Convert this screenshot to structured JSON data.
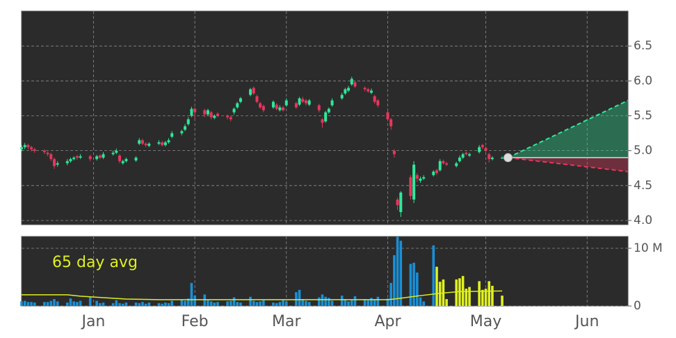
{
  "chart_data": {
    "type": "candlestick",
    "x": [
      -22,
      -21,
      -20,
      -19,
      -18,
      -15,
      -14,
      -13,
      -12,
      -11,
      -8,
      -7,
      -6,
      -5,
      -4,
      -1,
      1,
      2,
      3,
      6,
      7,
      8,
      9,
      10,
      13,
      14,
      15,
      16,
      17,
      20,
      21,
      22,
      23,
      24,
      27,
      28,
      29,
      30,
      31,
      34,
      35,
      36,
      37,
      38,
      41,
      42,
      43,
      44,
      45,
      48,
      49,
      50,
      51,
      52,
      55,
      56,
      57,
      58,
      59,
      62,
      63,
      64,
      65,
      66,
      69,
      70,
      71,
      72,
      73,
      76,
      77,
      78,
      79,
      80,
      83,
      84,
      85,
      86,
      87,
      90,
      91,
      92,
      93,
      94,
      97,
      98,
      99,
      100,
      101,
      104,
      105,
      106,
      107,
      108,
      111,
      112,
      113,
      114,
      115,
      118,
      119,
      120,
      121,
      122,
      125
    ],
    "open": [
      5.02,
      5.05,
      5.08,
      5.05,
      5.02,
      5.0,
      4.97,
      4.95,
      4.88,
      4.8,
      4.82,
      4.85,
      4.88,
      4.92,
      4.9,
      4.92,
      4.88,
      4.93,
      4.9,
      4.95,
      4.97,
      4.93,
      4.82,
      4.85,
      4.86,
      5.1,
      5.15,
      5.1,
      5.07,
      5.1,
      5.12,
      5.08,
      5.12,
      5.2,
      5.25,
      5.3,
      5.38,
      5.5,
      5.6,
      5.58,
      5.52,
      5.55,
      5.47,
      5.53,
      5.5,
      5.48,
      5.55,
      5.62,
      5.7,
      5.8,
      5.9,
      5.78,
      5.68,
      5.64,
      5.62,
      5.66,
      5.58,
      5.62,
      5.65,
      5.68,
      5.66,
      5.74,
      5.72,
      5.66,
      5.65,
      5.45,
      5.42,
      5.55,
      5.65,
      5.75,
      5.82,
      5.86,
      5.95,
      5.98,
      5.9,
      5.88,
      5.83,
      5.78,
      5.72,
      5.55,
      5.45,
      5.0,
      4.3,
      4.12,
      4.62,
      4.3,
      4.65,
      4.57,
      4.6,
      4.65,
      4.72,
      4.72,
      4.85,
      4.82,
      4.78,
      4.85,
      4.9,
      4.97,
      4.93,
      4.98,
      5.08,
      5.04,
      4.95,
      4.88,
      4.9
    ],
    "high": [
      5.08,
      5.11,
      5.1,
      5.07,
      5.04,
      5.02,
      4.99,
      4.97,
      4.9,
      4.85,
      4.88,
      4.9,
      4.92,
      4.94,
      4.95,
      4.94,
      4.94,
      4.95,
      4.98,
      5.0,
      5.03,
      4.95,
      4.87,
      4.9,
      4.92,
      5.18,
      5.17,
      5.12,
      5.12,
      5.15,
      5.14,
      5.14,
      5.18,
      5.28,
      5.3,
      5.38,
      5.48,
      5.63,
      5.62,
      5.6,
      5.6,
      5.57,
      5.52,
      5.55,
      5.52,
      5.5,
      5.62,
      5.7,
      5.77,
      5.9,
      5.92,
      5.8,
      5.7,
      5.66,
      5.72,
      5.68,
      5.65,
      5.64,
      5.75,
      5.7,
      5.77,
      5.77,
      5.74,
      5.74,
      5.67,
      5.47,
      5.57,
      5.62,
      5.75,
      5.83,
      5.9,
      5.93,
      6.06,
      6.0,
      5.92,
      5.9,
      5.89,
      5.8,
      5.74,
      5.57,
      5.47,
      5.02,
      4.33,
      4.42,
      4.65,
      4.85,
      4.68,
      4.63,
      4.65,
      4.72,
      4.74,
      4.88,
      4.87,
      4.84,
      4.84,
      4.93,
      4.97,
      4.99,
      4.97,
      5.08,
      5.1,
      5.06,
      4.97,
      4.92,
      4.92
    ],
    "low": [
      4.99,
      5.02,
      5.02,
      4.99,
      4.97,
      4.95,
      4.92,
      4.85,
      4.74,
      4.77,
      4.79,
      4.83,
      4.86,
      4.87,
      4.88,
      4.85,
      4.86,
      4.88,
      4.88,
      4.93,
      4.95,
      4.82,
      4.8,
      4.83,
      4.84,
      5.08,
      5.08,
      5.05,
      5.05,
      5.08,
      5.06,
      5.06,
      5.1,
      5.18,
      5.22,
      5.28,
      5.36,
      5.48,
      5.45,
      5.48,
      5.5,
      5.45,
      5.45,
      5.48,
      5.45,
      5.42,
      5.52,
      5.6,
      5.68,
      5.78,
      5.8,
      5.68,
      5.6,
      5.55,
      5.6,
      5.58,
      5.56,
      5.56,
      5.63,
      5.6,
      5.64,
      5.68,
      5.65,
      5.64,
      5.55,
      5.33,
      5.4,
      5.53,
      5.63,
      5.73,
      5.8,
      5.84,
      5.93,
      5.9,
      5.85,
      5.83,
      5.81,
      5.67,
      5.62,
      5.42,
      5.3,
      4.9,
      4.15,
      4.05,
      4.3,
      4.25,
      4.55,
      4.54,
      4.58,
      4.63,
      4.65,
      4.7,
      4.8,
      4.78,
      4.76,
      4.83,
      4.88,
      4.93,
      4.91,
      4.96,
      5.02,
      4.98,
      4.83,
      4.86,
      4.88
    ],
    "close": [
      5.05,
      5.08,
      5.05,
      5.02,
      5.0,
      4.98,
      4.95,
      4.88,
      4.78,
      4.82,
      4.85,
      4.88,
      4.9,
      4.9,
      4.92,
      4.88,
      4.92,
      4.9,
      4.95,
      4.97,
      5.0,
      4.85,
      4.85,
      4.88,
      4.9,
      5.15,
      5.1,
      5.08,
      5.1,
      5.12,
      5.08,
      5.12,
      5.15,
      5.25,
      5.28,
      5.35,
      5.45,
      5.6,
      5.55,
      5.52,
      5.58,
      5.48,
      5.5,
      5.5,
      5.48,
      5.45,
      5.6,
      5.68,
      5.75,
      5.88,
      5.82,
      5.7,
      5.62,
      5.58,
      5.7,
      5.6,
      5.62,
      5.58,
      5.72,
      5.62,
      5.75,
      5.7,
      5.68,
      5.72,
      5.58,
      5.4,
      5.55,
      5.6,
      5.72,
      5.8,
      5.88,
      5.9,
      6.03,
      5.92,
      5.88,
      5.85,
      5.86,
      5.7,
      5.65,
      5.45,
      5.35,
      4.95,
      4.22,
      4.4,
      4.35,
      4.8,
      4.6,
      4.6,
      4.62,
      4.7,
      4.68,
      4.85,
      4.82,
      4.8,
      4.82,
      4.9,
      4.95,
      4.95,
      4.95,
      5.05,
      5.05,
      5.0,
      4.88,
      4.9,
      4.9
    ],
    "up_color": "#2ee89b",
    "down_color": "#e8365c",
    "xlim": [
      -22,
      163.5
    ],
    "xticks": [
      {
        "value": 0,
        "label": "Jan"
      },
      {
        "value": 31,
        "label": "Feb"
      },
      {
        "value": 59,
        "label": "Mar"
      },
      {
        "value": 90,
        "label": "Apr"
      },
      {
        "value": 120,
        "label": "May"
      },
      {
        "value": 151,
        "label": "Jun"
      }
    ],
    "ylim": [
      3.94,
      7.0
    ],
    "yticks": [
      {
        "value": 4,
        "label": "4.0"
      },
      4.5,
      {
        "value": 5,
        "label": "5.0"
      },
      5.5,
      {
        "value": 6,
        "label": "6.0"
      },
      6.5
    ],
    "grid": true,
    "projection": {
      "x": [
        126.8,
        163.5
      ],
      "upper": [
        4.9,
        5.72
      ],
      "mid": [
        4.9,
        4.9
      ],
      "lower": [
        4.9,
        4.7
      ],
      "up_color": "#2ee89b",
      "down_color": "#e8365c"
    },
    "volume": {
      "values": [
        0.8,
        0.9,
        0.7,
        0.7,
        0.6,
        0.7,
        0.7,
        0.9,
        1.2,
        0.8,
        0.6,
        1.3,
        0.8,
        0.7,
        0.9,
        1.5,
        0.9,
        0.5,
        0.6,
        0.5,
        1.0,
        0.5,
        0.4,
        0.6,
        0.6,
        0.5,
        0.7,
        0.4,
        0.6,
        0.5,
        0.4,
        0.6,
        0.5,
        0.9,
        1.1,
        0.9,
        1.3,
        4.0,
        1.8,
        2.0,
        1.0,
        0.8,
        0.6,
        0.7,
        0.8,
        0.9,
        1.5,
        0.7,
        0.6,
        1.6,
        0.9,
        0.7,
        0.8,
        1.0,
        0.6,
        0.5,
        0.7,
        1.0,
        0.8,
        2.4,
        2.8,
        1.2,
        0.9,
        0.7,
        1.5,
        2.0,
        1.6,
        1.4,
        0.9,
        1.8,
        1.2,
        0.8,
        1.0,
        1.7,
        1.2,
        1.0,
        1.4,
        1.1,
        1.6,
        1.3,
        4.0,
        8.8,
        12.0,
        11.3,
        7.3,
        7.5,
        5.8,
        1.5,
        0.8,
        10.5,
        6.8,
        4.2,
        4.6,
        1.2,
        4.6,
        4.8,
        5.2,
        3.0,
        3.3,
        4.3,
        2.8,
        3.0,
        4.3,
        3.5,
        1.8
      ],
      "color": "#1a8fd6",
      "highlight_color": "#dff01e",
      "highlight_from": 105,
      "ylim": [
        0,
        12.05
      ],
      "yticks": [
        0,
        {
          "value": 10,
          "label": "10 M"
        }
      ],
      "avg_label": "65 day avg",
      "avg_color": "#dff01e",
      "avg_x": [
        -22,
        -8,
        -4,
        10,
        20,
        90,
        92,
        100,
        106,
        112,
        125
      ],
      "avg_values": [
        1.95,
        1.95,
        1.7,
        1.2,
        1.1,
        1.1,
        1.2,
        1.8,
        2.2,
        2.5,
        2.6
      ]
    }
  }
}
